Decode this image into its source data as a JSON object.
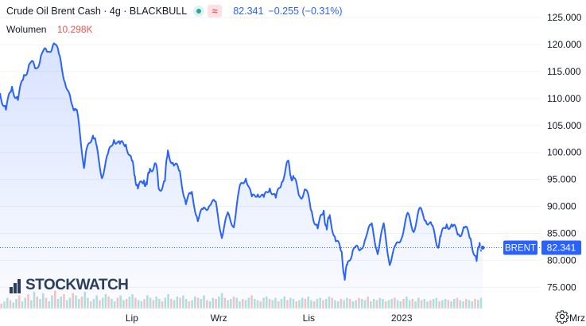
{
  "legend": {
    "title": "Crude Oil Brent Cash · 4g · BLACKBULL",
    "wave_symbol": "≈",
    "price": "82.341",
    "change": "−0.255 (−0.31%)"
  },
  "volume_legend": {
    "label": "Wolumen",
    "value": "10.298K"
  },
  "watermark": {
    "text": "STOCKWATCH"
  },
  "price_tag": {
    "symbol": "BRENT",
    "value": "82.341"
  },
  "colors": {
    "line": "#2962ff",
    "area_top": "#cfdcfb",
    "volume_up": "#26a69a",
    "volume_down": "#ef5350",
    "axis_text": "#131722"
  },
  "icons": {
    "settings": "gear-icon"
  },
  "chart_data": {
    "type": "line",
    "x_unit": "trading day (4h bars)",
    "x_ticks": [
      {
        "label": "Lip",
        "x": 44
      },
      {
        "label": "Wrz",
        "x": 73
      },
      {
        "label": "Lis",
        "x": 103
      },
      {
        "label": "2023",
        "x": 134
      },
      {
        "label": "Mrz.",
        "x": 193
      }
    ],
    "y_axis": {
      "ticks": [
        "125.000",
        "120.000",
        "115.000",
        "110.000",
        "105.000",
        "100.000",
        "95.000",
        "90.000",
        "85.000",
        "80.000",
        "75.000"
      ],
      "ylim": [
        71.5,
        126.5
      ]
    },
    "last_value": 82.341,
    "series": [
      {
        "values": [
          [
            0,
            111
          ],
          [
            2,
            108
          ],
          [
            4,
            112
          ],
          [
            6,
            110
          ],
          [
            8,
            114
          ],
          [
            10,
            117
          ],
          [
            12,
            115
          ],
          [
            14,
            119
          ],
          [
            16,
            118
          ],
          [
            18,
            121
          ],
          [
            20,
            117
          ],
          [
            22,
            113
          ],
          [
            24,
            108
          ],
          [
            25,
            109
          ],
          [
            26,
            106
          ],
          [
            28,
            98
          ],
          [
            29,
            100
          ],
          [
            31,
            104
          ],
          [
            32,
            101
          ],
          [
            34,
            96
          ],
          [
            36,
            99
          ],
          [
            38,
            103
          ],
          [
            40,
            101
          ],
          [
            42,
            102
          ],
          [
            44,
            98
          ],
          [
            45,
            96
          ],
          [
            46,
            93
          ],
          [
            48,
            95
          ],
          [
            49,
            94
          ],
          [
            50,
            97
          ],
          [
            52,
            98
          ],
          [
            53,
            93
          ],
          [
            55,
            95
          ],
          [
            56,
            100
          ],
          [
            58,
            98
          ],
          [
            60,
            96
          ],
          [
            62,
            91
          ],
          [
            64,
            92
          ],
          [
            66,
            88
          ],
          [
            68,
            89
          ],
          [
            70,
            91
          ],
          [
            72,
            90
          ],
          [
            74,
            85
          ],
          [
            76,
            88
          ],
          [
            78,
            87
          ],
          [
            80,
            93
          ],
          [
            82,
            96
          ],
          [
            84,
            91
          ],
          [
            86,
            93
          ],
          [
            88,
            91
          ],
          [
            90,
            94
          ],
          [
            92,
            91
          ],
          [
            94,
            95
          ],
          [
            96,
            98
          ],
          [
            97,
            96
          ],
          [
            98,
            95
          ],
          [
            100,
            92
          ],
          [
            102,
            93
          ],
          [
            104,
            89
          ],
          [
            106,
            86
          ],
          [
            108,
            89
          ],
          [
            109,
            86
          ],
          [
            110,
            88
          ],
          [
            112,
            84
          ],
          [
            114,
            81
          ],
          [
            115,
            77
          ],
          [
            116,
            79
          ],
          [
            118,
            83
          ],
          [
            120,
            81
          ],
          [
            122,
            85
          ],
          [
            124,
            86
          ],
          [
            126,
            82
          ],
          [
            128,
            86
          ],
          [
            130,
            80
          ],
          [
            132,
            82
          ],
          [
            134,
            85
          ],
          [
            136,
            88
          ],
          [
            138,
            86
          ],
          [
            140,
            89
          ],
          [
            142,
            88
          ],
          [
            144,
            86
          ],
          [
            146,
            83
          ],
          [
            147,
            84
          ],
          [
            149,
            87
          ],
          [
            151,
            86
          ],
          [
            153,
            85
          ],
          [
            155,
            86
          ],
          [
            157,
            84
          ],
          [
            159,
            80
          ],
          [
            160,
            83
          ],
          [
            161,
            82.341
          ]
        ]
      }
    ],
    "volume": {
      "unit": "contracts",
      "values": [
        4,
        6,
        9,
        7,
        5,
        8,
        11,
        6,
        9,
        12,
        7,
        14,
        10,
        8,
        13,
        9,
        6,
        11,
        15,
        8,
        10,
        12,
        7,
        9,
        13,
        11,
        8,
        10,
        14,
        9,
        6,
        8,
        11,
        7,
        9,
        12,
        10,
        8,
        6,
        9,
        11,
        7,
        8,
        10,
        12,
        9,
        7,
        6,
        8,
        11,
        9,
        7,
        10,
        8,
        6,
        9,
        12,
        8,
        7,
        10,
        9,
        11,
        8,
        6,
        7,
        10,
        9,
        8,
        11,
        7,
        6,
        9,
        8,
        10,
        13,
        9,
        7,
        8,
        10,
        9,
        6,
        8,
        7,
        9,
        11,
        8,
        7,
        6,
        9,
        10,
        8,
        7,
        9,
        6,
        8,
        10,
        7,
        9,
        8,
        6,
        7,
        9,
        8,
        10,
        7,
        6,
        8,
        9,
        7,
        8,
        10,
        9,
        7,
        6,
        8,
        7,
        9,
        8,
        6,
        7,
        9,
        8,
        7,
        10,
        6,
        8,
        7,
        9,
        8,
        6,
        7,
        8,
        9,
        7,
        6,
        8,
        10,
        7,
        8,
        6,
        9,
        7,
        8,
        6,
        7,
        8,
        9,
        6,
        7,
        8,
        7,
        6,
        8,
        9,
        7,
        6,
        8,
        7,
        6,
        8,
        7,
        9
      ]
    }
  }
}
